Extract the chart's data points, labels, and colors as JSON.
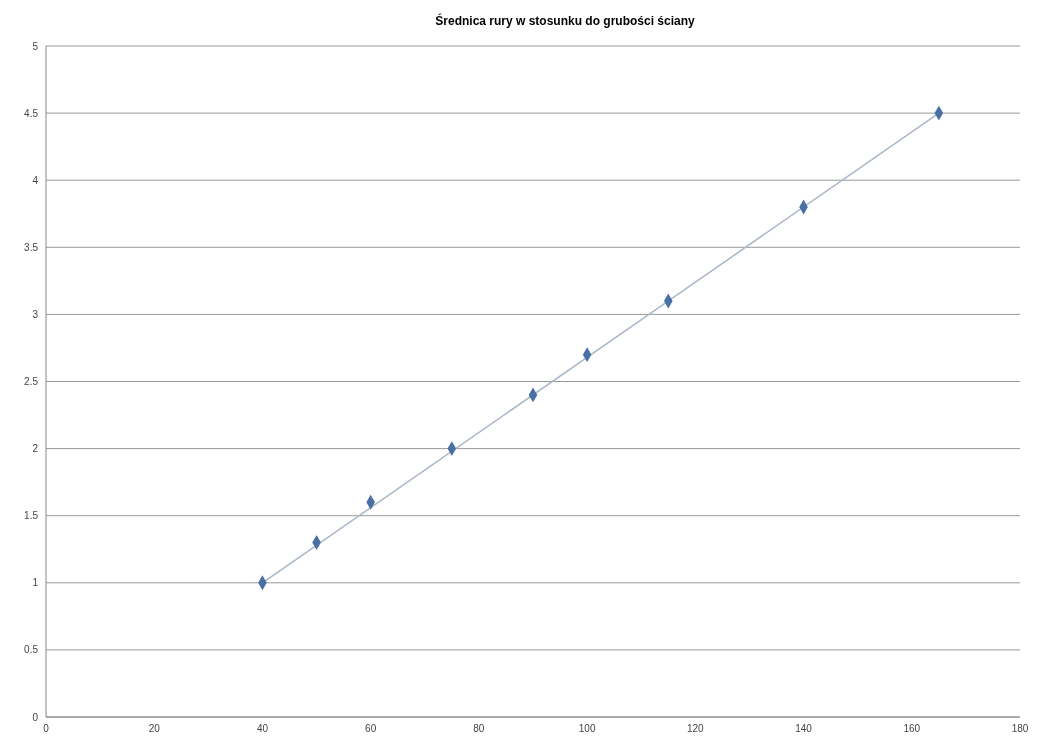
{
  "chart_data": {
    "type": "scatter",
    "title": "Średnica rury w stosunku do grubości ściany",
    "series": [
      {
        "color": "#4a6fa5",
        "marker": "diamond",
        "x": [
          40,
          50,
          60,
          75,
          90,
          100,
          115,
          140,
          165
        ],
        "values": [
          1,
          1.3,
          1.6,
          2,
          2.4,
          2.7,
          3.1,
          3.8,
          4.5
        ]
      },
      {
        "type": "line",
        "color": "#a9b7c9",
        "marker": "none",
        "x": [
          40,
          165
        ],
        "values": [
          1,
          4.5
        ]
      }
    ],
    "xlim": [
      0,
      180
    ],
    "xticks": [
      0,
      20,
      40,
      60,
      80,
      100,
      120,
      140,
      160,
      180
    ],
    "ylim": [
      0,
      5
    ],
    "yticks": [
      0,
      0.5,
      1,
      1.5,
      2,
      2.5,
      3,
      3.5,
      4,
      4.5,
      5
    ],
    "grid": "y",
    "legend": false
  }
}
